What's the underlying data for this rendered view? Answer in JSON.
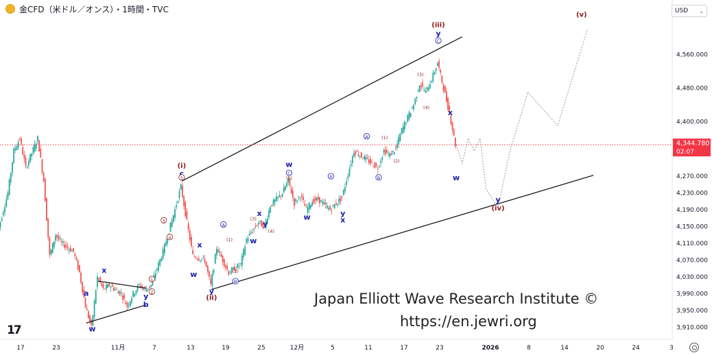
{
  "header": {
    "title": "金CFD（米ドル／オンス）・1時間・TVC"
  },
  "currency_select": {
    "value": "USD",
    "icon": "chevron-down-icon"
  },
  "colors": {
    "up": "#26a69a",
    "down": "#ef5350",
    "wave_blue": "#1a1fa8",
    "wave_red": "#8b1a1a",
    "price_badge": "#f23645",
    "channel": "#1b1b1b",
    "projection": "#9a9a9a"
  },
  "price_label": {
    "price": "4,344.780",
    "countdown": "02:07"
  },
  "watermark": {
    "line1": "Japan Elliott Wave Research Institute ©",
    "line2": "https://en.jewri.org"
  },
  "chart_data": {
    "type": "candlestick",
    "title": "金CFD（米ドル／オンス）・1時間・TVC",
    "ylim": [
      3880,
      4620
    ],
    "y_ticks": [
      "4,560.000",
      "4,480.000",
      "4,400.000",
      "4,270.000",
      "4,230.000",
      "4,190.000",
      "4,150.000",
      "4,110.000",
      "4,070.000",
      "4,030.000",
      "3,990.000",
      "3,950.000",
      "3,910.000"
    ],
    "x_ticks": [
      "17",
      "23",
      "11月",
      "7",
      "13",
      "19",
      "25",
      "12月",
      "5",
      "11",
      "17",
      "23",
      "2026",
      "8",
      "14",
      "20",
      "24",
      "3"
    ],
    "price_path": [
      {
        "d": "2025-10-13",
        "p": 4120
      },
      {
        "d": "2025-10-14",
        "p": 4175
      },
      {
        "d": "2025-10-15",
        "p": 4230
      },
      {
        "d": "2025-10-16",
        "p": 4330
      },
      {
        "d": "2025-10-17",
        "p": 4360
      },
      {
        "d": "2025-10-18",
        "p": 4290
      },
      {
        "d": "2025-10-20",
        "p": 4360
      },
      {
        "d": "2025-10-21",
        "p": 4260
      },
      {
        "d": "2025-10-22",
        "p": 4080
      },
      {
        "d": "2025-10-23",
        "p": 4130
      },
      {
        "d": "2025-10-24",
        "p": 4110
      },
      {
        "d": "2025-10-26",
        "p": 4090
      },
      {
        "d": "2025-10-27",
        "p": 4040
      },
      {
        "d": "2025-10-28",
        "p": 3960
      },
      {
        "d": "2025-10-29",
        "p": 3910
      },
      {
        "d": "2025-10-30",
        "p": 4030
      },
      {
        "d": "2025-10-31",
        "p": 4000
      },
      {
        "d": "2025-11-01",
        "p": 4010
      },
      {
        "d": "2025-11-03",
        "p": 3990
      },
      {
        "d": "2025-11-04",
        "p": 3960
      },
      {
        "d": "2025-11-05",
        "p": 3990
      },
      {
        "d": "2025-11-06",
        "p": 4010
      },
      {
        "d": "2025-11-07",
        "p": 4000
      },
      {
        "d": "2025-11-08",
        "p": 4010
      },
      {
        "d": "2025-11-10",
        "p": 4090
      },
      {
        "d": "2025-11-11",
        "p": 4140
      },
      {
        "d": "2025-11-12",
        "p": 4190
      },
      {
        "d": "2025-11-13",
        "p": 4245
      },
      {
        "d": "2025-11-14",
        "p": 4160
      },
      {
        "d": "2025-11-15",
        "p": 4080
      },
      {
        "d": "2025-11-17",
        "p": 4070
      },
      {
        "d": "2025-11-18",
        "p": 4010
      },
      {
        "d": "2025-11-19",
        "p": 4100
      },
      {
        "d": "2025-11-20",
        "p": 4070
      },
      {
        "d": "2025-11-21",
        "p": 4040
      },
      {
        "d": "2025-11-23",
        "p": 4060
      },
      {
        "d": "2025-11-24",
        "p": 4120
      },
      {
        "d": "2025-11-25",
        "p": 4140
      },
      {
        "d": "2025-11-26",
        "p": 4160
      },
      {
        "d": "2025-11-27",
        "p": 4150
      },
      {
        "d": "2025-11-28",
        "p": 4200
      },
      {
        "d": "2025-11-30",
        "p": 4230
      },
      {
        "d": "2025-12-01",
        "p": 4260
      },
      {
        "d": "2025-12-02",
        "p": 4205
      },
      {
        "d": "2025-12-03",
        "p": 4225
      },
      {
        "d": "2025-12-04",
        "p": 4190
      },
      {
        "d": "2025-12-05",
        "p": 4210
      },
      {
        "d": "2025-12-06",
        "p": 4215
      },
      {
        "d": "2025-12-08",
        "p": 4190
      },
      {
        "d": "2025-12-09",
        "p": 4205
      },
      {
        "d": "2025-12-10",
        "p": 4220
      },
      {
        "d": "2025-12-11",
        "p": 4275
      },
      {
        "d": "2025-12-12",
        "p": 4330
      },
      {
        "d": "2025-12-13",
        "p": 4320
      },
      {
        "d": "2025-12-15",
        "p": 4300
      },
      {
        "d": "2025-12-16",
        "p": 4290
      },
      {
        "d": "2025-12-17",
        "p": 4330
      },
      {
        "d": "2025-12-18",
        "p": 4320
      },
      {
        "d": "2025-12-19",
        "p": 4335
      },
      {
        "d": "2025-12-20",
        "p": 4380
      },
      {
        "d": "2025-12-22",
        "p": 4440
      },
      {
        "d": "2025-12-23",
        "p": 4490
      },
      {
        "d": "2025-12-24",
        "p": 4470
      },
      {
        "d": "2025-12-25",
        "p": 4500
      },
      {
        "d": "2025-12-26",
        "p": 4540
      },
      {
        "d": "2025-12-27",
        "p": 4480
      },
      {
        "d": "2025-12-28",
        "p": 4420
      },
      {
        "d": "2025-12-29",
        "p": 4345
      }
    ],
    "channel_lines": [
      {
        "from": {
          "d": "2025-11-13",
          "p": 4258
        },
        "to": {
          "d": "2025-12-30",
          "p": 4602
        }
      },
      {
        "from": {
          "d": "2025-11-18",
          "p": 4000
        },
        "to": {
          "d": "2026-01-21",
          "p": 4272
        }
      },
      {
        "from": {
          "d": "2025-10-30",
          "p": 4020
        },
        "to": {
          "d": "2025-11-07",
          "p": 4003
        }
      },
      {
        "from": {
          "d": "2025-10-28",
          "p": 3920
        },
        "to": {
          "d": "2025-11-07",
          "p": 3963
        }
      }
    ],
    "projection": [
      {
        "d": "2025-12-29",
        "p": 4345
      },
      {
        "d": "2025-12-30",
        "p": 4300
      },
      {
        "d": "2025-12-31",
        "p": 4360
      },
      {
        "d": "2026-01-01",
        "p": 4330
      },
      {
        "d": "2026-01-02",
        "p": 4360
      },
      {
        "d": "2026-01-03",
        "p": 4240
      },
      {
        "d": "2026-01-05",
        "p": 4195
      },
      {
        "d": "2026-01-07",
        "p": 4330
      },
      {
        "d": "2026-01-10",
        "p": 4470
      },
      {
        "d": "2026-01-15",
        "p": 4390
      },
      {
        "d": "2026-01-20",
        "p": 4620
      }
    ],
    "wave_labels": [
      {
        "t": "a",
        "d": "2025-10-28",
        "p": 3985,
        "c": "blue"
      },
      {
        "t": "w",
        "d": "2025-10-29",
        "p": 3900,
        "c": "blue"
      },
      {
        "t": "x",
        "d": "2025-10-31",
        "p": 4040,
        "c": "blue"
      },
      {
        "t": "y",
        "d": "2025-11-07",
        "p": 3978,
        "c": "blue"
      },
      {
        "t": "b",
        "d": "2025-11-07",
        "p": 3958,
        "c": "blue"
      },
      {
        "t": "1",
        "d": "2025-11-08",
        "p": 4020,
        "c": "red"
      },
      {
        "t": "2",
        "d": "2025-11-08",
        "p": 3990,
        "c": "red"
      },
      {
        "t": "3",
        "d": "2025-11-10",
        "p": 4160,
        "c": "red"
      },
      {
        "t": "4",
        "d": "2025-11-11",
        "p": 4120,
        "c": "red"
      },
      {
        "t": "(i)",
        "d": "2025-11-13",
        "p": 4290,
        "c": "red"
      },
      {
        "t": "c",
        "d": "2025-11-13",
        "p": 4270,
        "c": "blue"
      },
      {
        "t": "5",
        "d": "2025-11-13",
        "p": 4262,
        "c": "red"
      },
      {
        "t": "w",
        "d": "2025-11-15",
        "p": 4030,
        "c": "blue"
      },
      {
        "t": "x",
        "d": "2025-11-16",
        "p": 4100,
        "c": "blue"
      },
      {
        "t": "y",
        "d": "2025-11-18",
        "p": 3990,
        "c": "blue"
      },
      {
        "t": "(ii)",
        "d": "2025-11-18",
        "p": 3975,
        "c": "red"
      },
      {
        "t": "A",
        "d": "2025-11-20",
        "p": 4150,
        "c": "blue"
      },
      {
        "t": "(1)",
        "d": "2025-11-21",
        "p": 4115,
        "c": "red"
      },
      {
        "t": "(2)",
        "d": "2025-11-22",
        "p": 4040,
        "c": "red"
      },
      {
        "t": "B",
        "d": "2025-11-22",
        "p": 4015,
        "c": "blue"
      },
      {
        "t": "(3)",
        "d": "2025-11-25",
        "p": 4165,
        "c": "red"
      },
      {
        "t": "w",
        "d": "2025-11-25",
        "p": 4110,
        "c": "blue"
      },
      {
        "t": "x",
        "d": "2025-11-26",
        "p": 4175,
        "c": "blue"
      },
      {
        "t": "y",
        "d": "2025-11-27",
        "p": 4150,
        "c": "blue"
      },
      {
        "t": "(4)",
        "d": "2025-11-28",
        "p": 4135,
        "c": "red"
      },
      {
        "t": "w",
        "d": "2025-12-01",
        "p": 4292,
        "c": "blue"
      },
      {
        "t": "C",
        "d": "2025-12-01",
        "p": 4273,
        "c": "blue"
      },
      {
        "t": "(5)",
        "d": "2025-12-01",
        "p": 4262,
        "c": "red"
      },
      {
        "t": "w",
        "d": "2025-12-04",
        "p": 4166,
        "c": "blue"
      },
      {
        "t": "X",
        "d": "2025-12-08",
        "p": 4265,
        "c": "blue"
      },
      {
        "t": "y",
        "d": "2025-12-10",
        "p": 4175,
        "c": "blue"
      },
      {
        "t": "x",
        "d": "2025-12-10",
        "p": 4160,
        "c": "blue"
      },
      {
        "t": "A",
        "d": "2025-12-14",
        "p": 4360,
        "c": "blue"
      },
      {
        "t": "B",
        "d": "2025-12-16",
        "p": 4262,
        "c": "blue"
      },
      {
        "t": "(1)",
        "d": "2025-12-17",
        "p": 4358,
        "c": "red"
      },
      {
        "t": "(2)",
        "d": "2025-12-19",
        "p": 4303,
        "c": "red"
      },
      {
        "t": "(3)",
        "d": "2025-12-23",
        "p": 4508,
        "c": "red"
      },
      {
        "t": "(4)",
        "d": "2025-12-24",
        "p": 4430,
        "c": "red"
      },
      {
        "t": "(iii)",
        "d": "2025-12-26",
        "p": 4625,
        "c": "red"
      },
      {
        "t": "y",
        "d": "2025-12-26",
        "p": 4604,
        "c": "blue"
      },
      {
        "t": "C",
        "d": "2025-12-26",
        "p": 4588,
        "c": "blue"
      },
      {
        "t": "x",
        "d": "2025-12-28",
        "p": 4415,
        "c": "blue"
      },
      {
        "t": "w",
        "d": "2025-12-29",
        "p": 4260,
        "c": "blue"
      },
      {
        "t": "y",
        "d": "2026-01-05",
        "p": 4208,
        "c": "blue"
      },
      {
        "t": "(iv)",
        "d": "2026-01-05",
        "p": 4188,
        "c": "red"
      },
      {
        "t": "(v)",
        "d": "2026-01-19",
        "p": 4650,
        "c": "red"
      }
    ]
  }
}
